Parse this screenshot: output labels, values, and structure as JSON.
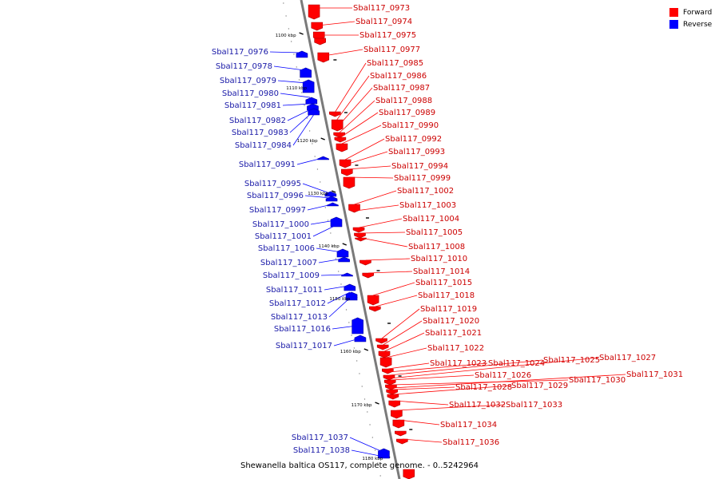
{
  "title": "Shewanella baltica OS117, complete genome. - 0..5242964",
  "legend": {
    "forward_label": "Forward",
    "reverse_label": "Reverse",
    "forward_color": "#ff0000",
    "reverse_color": "#0000ff"
  },
  "ticks": [
    "1100 kbp",
    "1110 kbp",
    "1120 kbp",
    "1130 kbp",
    "1140 kbp",
    "1150 kbp",
    "1160 kbp",
    "1170 kbp",
    "1180 kbp"
  ],
  "forward_genes": [
    "Sbal117_0973",
    "Sbal117_0974",
    "Sbal117_0975",
    "Sbal117_0977",
    "Sbal117_0985",
    "Sbal117_0986",
    "Sbal117_0987",
    "Sbal117_0988",
    "Sbal117_0989",
    "Sbal117_0990",
    "Sbal117_0992",
    "Sbal117_0993",
    "Sbal117_0994",
    "Sbal117_0999",
    "Sbal117_1002",
    "Sbal117_1003",
    "Sbal117_1004",
    "Sbal117_1005",
    "Sbal117_1008",
    "Sbal117_1010",
    "Sbal117_1014",
    "Sbal117_1015",
    "Sbal117_1018",
    "Sbal117_1019",
    "Sbal117_1020",
    "Sbal117_1021",
    "Sbal117_1022",
    "Sbal117_1023",
    "Sbal117_1024",
    "Sbal117_1025",
    "Sbal117_1027",
    "Sbal117_1026",
    "Sbal117_1030",
    "Sbal117_1031",
    "Sbal117_1028",
    "Sbal117_1029",
    "Sbal117_1032",
    "Sbal117_1033",
    "Sbal117_1034",
    "Sbal117_1036"
  ],
  "reverse_genes": [
    "Sbal117_0976",
    "Sbal117_0978",
    "Sbal117_0979",
    "Sbal117_0980",
    "Sbal117_0981",
    "Sbal117_0982",
    "Sbal117_0983",
    "Sbal117_0984",
    "Sbal117_0991",
    "Sbal117_0995",
    "Sbal117_0996",
    "Sbal117_0997",
    "Sbal117_1000",
    "Sbal117_1001",
    "Sbal117_1006",
    "Sbal117_1007",
    "Sbal117_1009",
    "Sbal117_1011",
    "Sbal117_1012",
    "Sbal117_1013",
    "Sbal117_1016",
    "Sbal117_1017",
    "Sbal117_1037",
    "Sbal117_1038"
  ]
}
